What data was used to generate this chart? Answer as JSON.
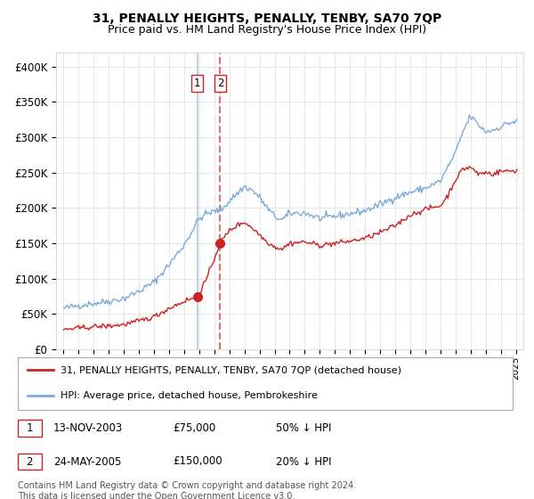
{
  "title": "31, PENALLY HEIGHTS, PENALLY, TENBY, SA70 7QP",
  "subtitle": "Price paid vs. HM Land Registry's House Price Index (HPI)",
  "legend_line1": "31, PENALLY HEIGHTS, PENALLY, TENBY, SA70 7QP (detached house)",
  "legend_line2": "HPI: Average price, detached house, Pembrokeshire",
  "transaction1_date": "13-NOV-2003",
  "transaction1_price": "£75,000",
  "transaction1_hpi": "50% ↓ HPI",
  "transaction2_date": "24-MAY-2005",
  "transaction2_price": "£150,000",
  "transaction2_hpi": "20% ↓ HPI",
  "footer": "Contains HM Land Registry data © Crown copyright and database right 2024.\nThis data is licensed under the Open Government Licence v3.0.",
  "hpi_color": "#7aabdb",
  "price_color": "#cc2222",
  "vline1_color": "#b8d0e8",
  "vline2_color": "#e07070",
  "marker_color": "#cc2222",
  "ylim": [
    0,
    420000
  ],
  "yticks": [
    0,
    50000,
    100000,
    150000,
    200000,
    250000,
    300000,
    350000,
    400000
  ],
  "ytick_labels": [
    "£0",
    "£50K",
    "£100K",
    "£150K",
    "£200K",
    "£250K",
    "£300K",
    "£350K",
    "£400K"
  ]
}
